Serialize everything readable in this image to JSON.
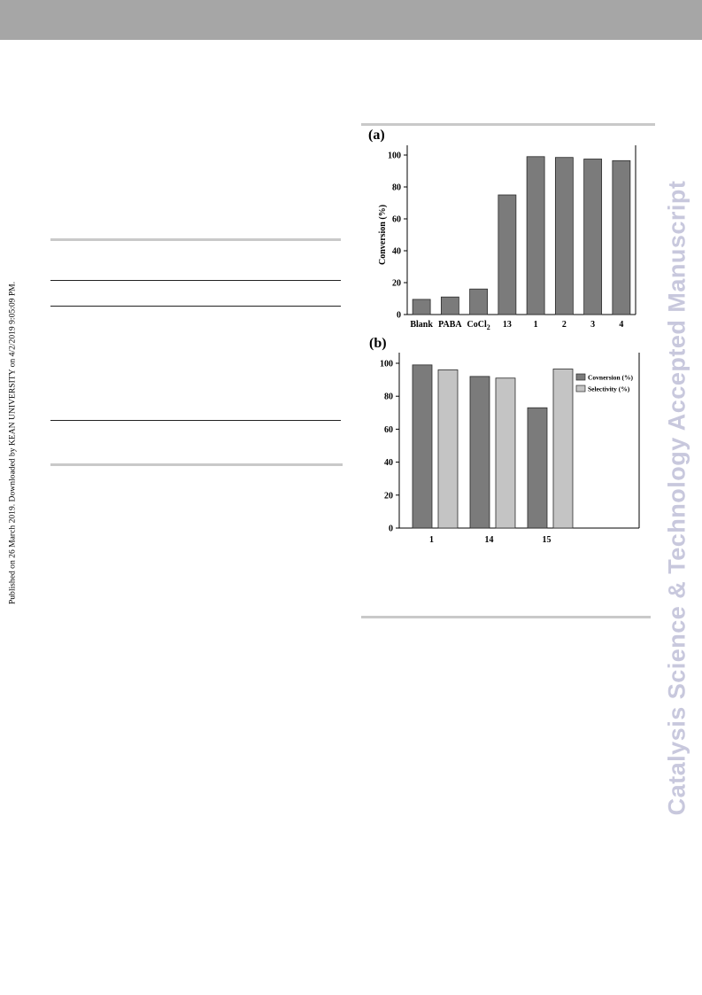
{
  "page": {
    "side_note": "Published on 26 March 2019. Downloaded by KEAN UNIVERSITY on 4/2/2019 9:05:09 PM.",
    "watermark": "Catalysis Science & Technology Accepted Manuscript"
  },
  "colors": {
    "header_bar": "#a6a6a6",
    "conversion_bar": "#7b7b7b",
    "selectivity_bar": "#c4c4c4",
    "watermark": "#c8c8dd"
  },
  "chart_data": [
    {
      "panel": "(a)",
      "type": "bar",
      "ylabel": "Conversion (%)",
      "categories": [
        "Blank",
        "PABA",
        "CoCl2",
        "13",
        "1",
        "2",
        "3",
        "4"
      ],
      "values": [
        9.5,
        11,
        16,
        75,
        99,
        98.5,
        97.5,
        96.5
      ],
      "ylim": [
        0,
        100
      ],
      "yticks": [
        0,
        20,
        40,
        60,
        80,
        100
      ],
      "grid": false
    },
    {
      "panel": "(b)",
      "type": "bar",
      "categories": [
        "1",
        "14",
        "15"
      ],
      "series": [
        {
          "name": "Covnersion (%)",
          "values": [
            99,
            92,
            73
          ]
        },
        {
          "name": "Selectivity (%)",
          "values": [
            96,
            91,
            96.5
          ]
        }
      ],
      "ylim": [
        0,
        100
      ],
      "yticks": [
        0,
        20,
        40,
        60,
        80,
        100
      ],
      "legend": "top-right",
      "grid": false
    }
  ]
}
